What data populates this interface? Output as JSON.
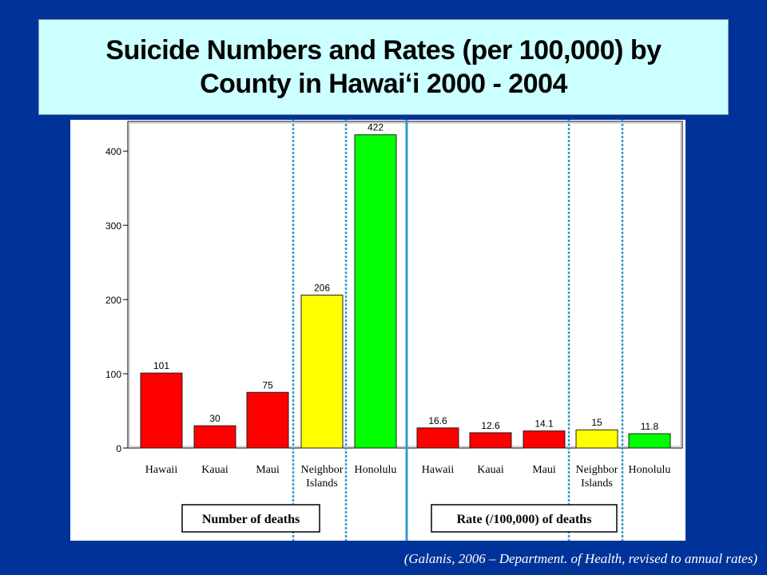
{
  "title": {
    "line1": "Suicide Numbers and Rates (per 100,000) by",
    "line2": "County in Hawai‘i 2000 - 2004"
  },
  "source": "(Galanis, 2006 – Department. of Health, revised to annual rates)",
  "colors": {
    "background": "#003399",
    "title_box": "#ccffff",
    "red": "#ff0000",
    "yellow": "#ffff00",
    "green": "#00ff00",
    "divider": "#3399cc"
  },
  "chart_data": {
    "type": "bar",
    "yticks": [
      "0",
      "100",
      "200",
      "300",
      "400"
    ],
    "ylim": [
      0,
      440
    ],
    "grid": false,
    "groups": [
      {
        "name": "Number of deaths",
        "bars": [
          {
            "category": "Hawaii",
            "value": 101,
            "label": "101",
            "color": "red"
          },
          {
            "category": "Kauai",
            "value": 30,
            "label": "30",
            "color": "red"
          },
          {
            "category": "Maui",
            "value": 75,
            "label": "75",
            "color": "red"
          },
          {
            "category": "Neighbor Islands",
            "value": 206,
            "label": "206",
            "color": "yellow"
          },
          {
            "category": "Honolulu",
            "value": 422,
            "label": "422",
            "color": "green"
          }
        ]
      },
      {
        "name": "Rate (/100,000) of deaths",
        "bars": [
          {
            "category": "Hawaii",
            "value": 16.6,
            "label": "16.6",
            "color": "red"
          },
          {
            "category": "Kauai",
            "value": 12.6,
            "label": "12.6",
            "color": "red"
          },
          {
            "category": "Maui",
            "value": 14.1,
            "label": "14.1",
            "color": "red"
          },
          {
            "category": "Neighbor Islands",
            "value": 15,
            "label": "15",
            "color": "yellow"
          },
          {
            "category": "Honolulu",
            "value": 11.8,
            "label": "11.8",
            "color": "green"
          }
        ]
      }
    ]
  }
}
